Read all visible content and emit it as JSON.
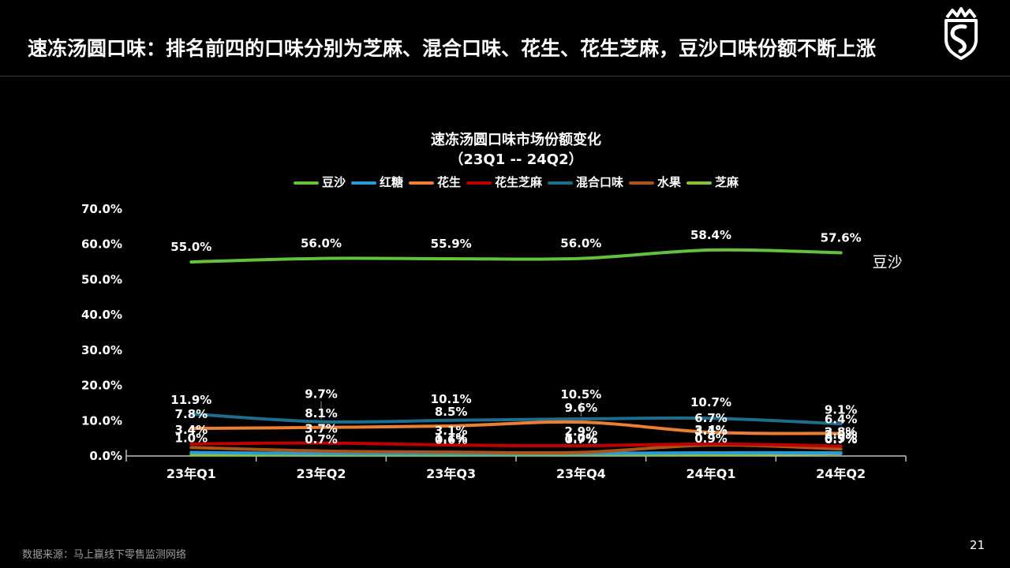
{
  "header": {
    "title": "速冻汤圆口味：排名前四的口味分别为芝麻、混合口味、花生、花生芝麻，豆沙口味份额不断上涨"
  },
  "footer": {
    "source": "数据来源：马上赢线下零售监测网络",
    "page_number": "21"
  },
  "colors": {
    "background": "#000000",
    "text": "#ffffff",
    "axis": "#bfbfbf",
    "leader": "#8a8a8a"
  },
  "chart_data": {
    "type": "line",
    "title": "速冻汤圆口味市场份额变化",
    "subtitle": "（23Q1 -- 24Q2）",
    "categories": [
      "23年Q1",
      "23年Q2",
      "23年Q3",
      "23年Q4",
      "24年Q1",
      "24年Q2"
    ],
    "ylim": [
      0,
      70
    ],
    "y_ticks": [
      "70.0%",
      "60.0%",
      "50.0%",
      "40.0%",
      "30.0%",
      "20.0%",
      "10.0%",
      "0.0%"
    ],
    "grid": false,
    "legend_position": "top",
    "draw_order": [
      6,
      1,
      5,
      3,
      4,
      2,
      0
    ],
    "series": [
      {
        "name": "豆沙",
        "color": "#63C13C",
        "values": [
          55.0,
          56.0,
          55.9,
          56.0,
          58.4,
          57.6
        ],
        "labels": [
          "55.0%",
          "56.0%",
          "55.9%",
          "56.0%",
          "58.4%",
          "57.6%"
        ],
        "label_dy": [
          -14,
          -14,
          -14,
          -14,
          -14,
          -14
        ],
        "end_label": "豆沙"
      },
      {
        "name": "红糖",
        "color": "#2B9BD7",
        "values": [
          1.0,
          0.7,
          0.6,
          0.7,
          0.9,
          0.9
        ],
        "labels": [
          "1.0%",
          "0.7%",
          "0.6%",
          "0.7%",
          "0.9%",
          "0.9%"
        ],
        "label_dy": [
          -13,
          -13,
          -13,
          -13,
          -13,
          -13
        ]
      },
      {
        "name": "花生",
        "color": "#ED7D31",
        "values": [
          7.8,
          8.1,
          8.5,
          9.6,
          6.7,
          6.4
        ],
        "labels": [
          "7.8%",
          "8.1%",
          "8.5%",
          "9.6%",
          "6.7%",
          "6.4%"
        ],
        "label_dy": [
          -13,
          -13,
          -13,
          -13,
          -13,
          -13
        ]
      },
      {
        "name": "花生芝麻",
        "color": "#C00000",
        "values": [
          3.4,
          3.7,
          3.1,
          2.9,
          3.4,
          2.8
        ],
        "labels": [
          "3.4%",
          "3.7%",
          "3.1%",
          "2.9%",
          "3.4%",
          "2.8%"
        ],
        "label_dy": [
          -13,
          -13,
          -13,
          -13,
          -13,
          -13
        ]
      },
      {
        "name": "混合口味",
        "color": "#1F6D8C",
        "values": [
          11.9,
          9.7,
          10.1,
          10.5,
          10.7,
          9.1
        ],
        "labels": [
          "11.9%",
          "9.7%",
          "10.1%",
          "10.5%",
          "10.7%",
          "9.1%"
        ],
        "label_dy": [
          -13,
          -30,
          -22,
          -26,
          -15,
          -13
        ],
        "leaders": [
          false,
          true,
          false,
          true,
          false,
          false
        ]
      },
      {
        "name": "水果",
        "color": "#AC5318",
        "values": [
          2.4,
          1.4,
          1.1,
          1.0,
          3.1,
          2.0
        ],
        "labels": [
          null,
          null,
          "1.1%",
          "1.0%",
          "3.1%",
          "2.0%"
        ],
        "label_dy": [
          -13,
          -13,
          -13,
          -13,
          -13,
          -13
        ]
      },
      {
        "name": "芝麻",
        "color": "#86C43D",
        "values": [
          0.3,
          0.3,
          0.3,
          0.4,
          0.4,
          0.7
        ],
        "labels": [
          null,
          null,
          null,
          null,
          null,
          "0.7%"
        ],
        "label_dy": [
          -13,
          -13,
          -13,
          -13,
          -13,
          -13
        ]
      }
    ]
  }
}
